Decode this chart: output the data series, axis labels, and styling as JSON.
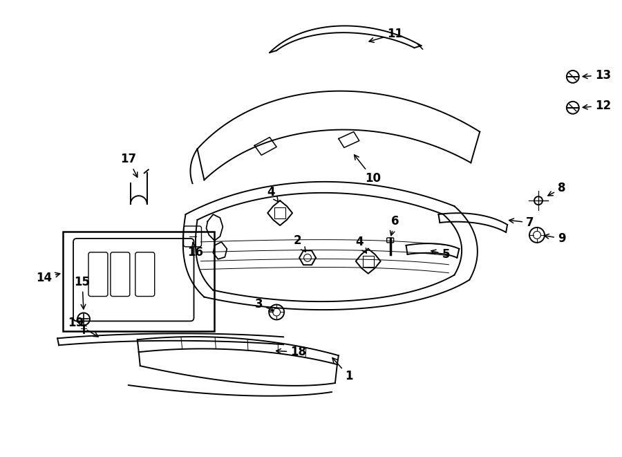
{
  "background_color": "#ffffff",
  "line_color": "#000000",
  "text_color": "#000000",
  "fig_width": 9.0,
  "fig_height": 6.61,
  "dpi": 100
}
